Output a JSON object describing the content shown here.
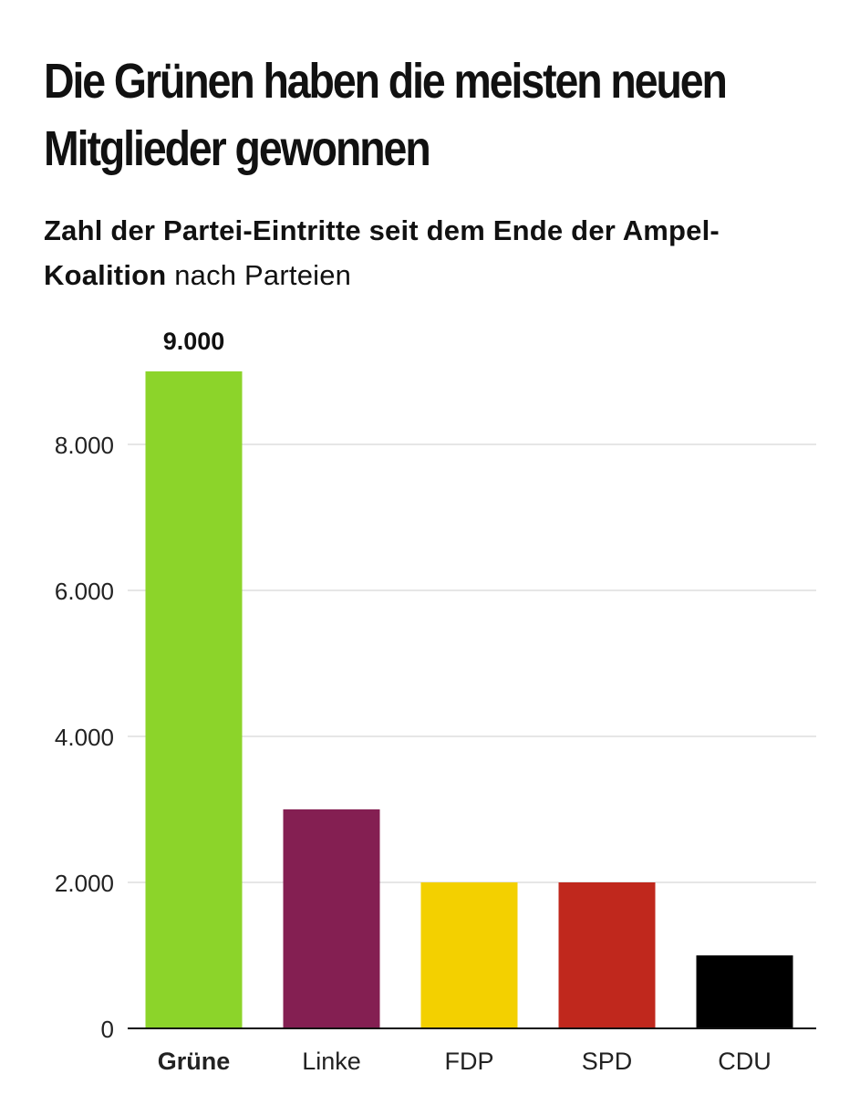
{
  "header": {
    "title": "Die Grünen haben die meisten neuen Mitglieder gewonnen",
    "subtitle_bold": "Zahl der Partei-Eintritte seit dem Ende der Ampel-Koalition",
    "subtitle_rest": " nach Parteien"
  },
  "chart_data": {
    "type": "bar",
    "categories": [
      "Grüne",
      "Linke",
      "FDP",
      "SPD",
      "CDU"
    ],
    "values": [
      9000,
      3000,
      2000,
      2000,
      1000
    ],
    "colors": [
      "#8cd42a",
      "#841f52",
      "#f3d000",
      "#c0281d",
      "#000000"
    ],
    "highlight_index": 0,
    "labeled": [
      {
        "index": 0,
        "text": "9.000"
      }
    ],
    "ylim": [
      0,
      9000
    ],
    "yticks": [
      0,
      2000,
      4000,
      6000,
      8000
    ],
    "ytick_labels": [
      "0",
      "2.000",
      "4.000",
      "6.000",
      "8.000"
    ],
    "grid": true,
    "title": "Die Grünen haben die meisten neuen Mitglieder gewonnen",
    "xlabel": "",
    "ylabel": ""
  }
}
